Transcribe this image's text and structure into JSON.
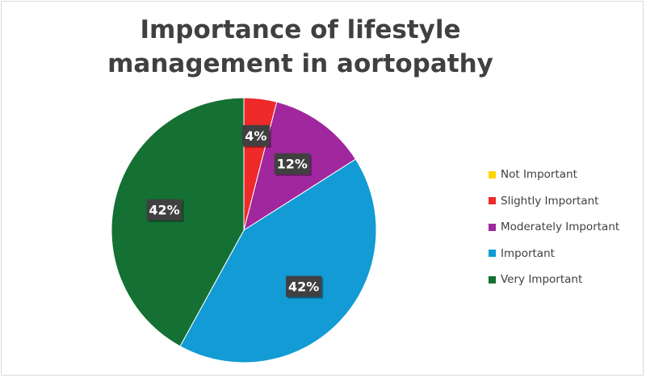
{
  "chart_data": {
    "type": "pie",
    "title": "Importance of lifestyle management in aortopathy",
    "categories": [
      "Not Important",
      "Slightly Important",
      "Moderately Important",
      "Important",
      "Very Important"
    ],
    "values": [
      0,
      4,
      12,
      42,
      42
    ],
    "value_unit": "%",
    "data_labels": [
      "",
      "4%",
      "12%",
      "42%",
      "42%"
    ],
    "colors": [
      "#ffd400",
      "#ee2a2a",
      "#a0279d",
      "#129bd4",
      "#147033"
    ],
    "start_angle": "12 o'clock",
    "direction": "clockwise",
    "legend_position": "right"
  }
}
